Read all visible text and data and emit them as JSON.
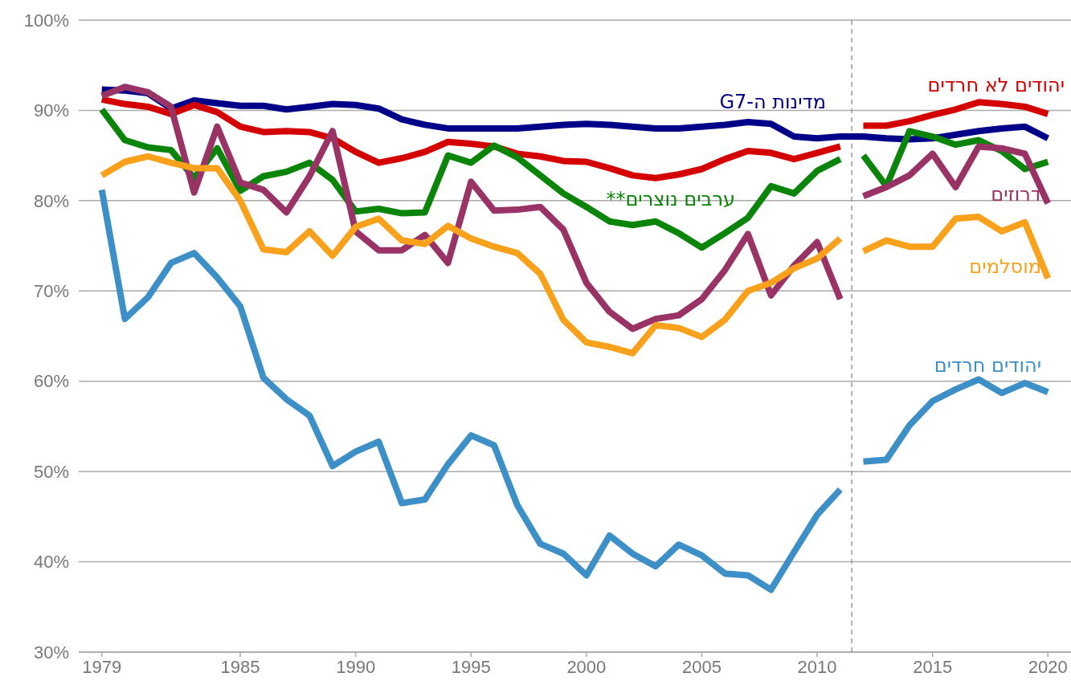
{
  "chart_data": {
    "type": "line",
    "x": [
      1979,
      1980,
      1981,
      1982,
      1983,
      1984,
      1985,
      1986,
      1987,
      1988,
      1989,
      1990,
      1991,
      1992,
      1993,
      1994,
      1995,
      1996,
      1997,
      1998,
      1999,
      2000,
      2001,
      2002,
      2003,
      2004,
      2005,
      2006,
      2007,
      2008,
      2009,
      2010,
      2011,
      2011.5,
      2012,
      2013,
      2014,
      2015,
      2016,
      2017,
      2018,
      2019,
      2020
    ],
    "xlim": [
      1978,
      2021
    ],
    "xticks": [
      1979,
      1985,
      1990,
      1995,
      2000,
      2005,
      2010,
      2015,
      2020
    ],
    "ylim": [
      30,
      100
    ],
    "yticks": [
      {
        "value": 30,
        "label": "30%"
      },
      {
        "value": 40,
        "label": "40%"
      },
      {
        "value": 50,
        "label": "50%"
      },
      {
        "value": 60,
        "label": "60%"
      },
      {
        "value": 70,
        "label": "70%"
      },
      {
        "value": 80,
        "label": "80%"
      },
      {
        "value": 90,
        "label": "90%"
      },
      {
        "value": 100,
        "label": "100%"
      }
    ],
    "grid": "y",
    "legend": false,
    "line_style": "solid",
    "marker": "none",
    "ref_lines": [
      {
        "axis": "x",
        "value": 2011.5,
        "line_style": "dashed",
        "color": "#999999"
      }
    ],
    "series": [
      {
        "name": "מדינות ה-G7",
        "color": "#000088",
        "x": [
          1979,
          1980,
          1981,
          1982,
          1983,
          1984,
          1985,
          1986,
          1987,
          1988,
          1989,
          1990,
          1991,
          1992,
          1993,
          1994,
          1995,
          1996,
          1997,
          1998,
          1999,
          2000,
          2001,
          2002,
          2003,
          2004,
          2005,
          2006,
          2007,
          2008,
          2009,
          2010,
          2011,
          2012,
          2013,
          2014,
          2015,
          2016,
          2017,
          2018,
          2019,
          2020
        ],
        "values": [
          92.3,
          92.2,
          91.9,
          90.2,
          91.1,
          90.8,
          90.5,
          90.5,
          90.1,
          90.4,
          90.7,
          90.6,
          90.2,
          89.0,
          88.4,
          88.0,
          88.0,
          88.0,
          88.0,
          88.2,
          88.4,
          88.5,
          88.4,
          88.2,
          88.0,
          88.0,
          88.2,
          88.4,
          88.7,
          88.5,
          87.1,
          86.9,
          87.1,
          87.1,
          86.9,
          86.8,
          86.9,
          87.3,
          87.7,
          88.0,
          88.2,
          86.9
        ]
      },
      {
        "name": "יהודים לא חרדים",
        "color": "#d40000",
        "values": [
          91.2,
          90.7,
          90.4,
          89.6,
          90.6,
          89.8,
          88.2,
          87.6,
          87.7,
          87.6,
          86.9,
          85.4,
          84.2,
          84.7,
          85.4,
          86.5,
          86.3,
          86.0,
          85.2,
          84.9,
          84.4,
          84.3,
          83.6,
          82.8,
          82.5,
          82.9,
          83.5,
          84.6,
          85.5,
          85.3,
          84.6,
          85.3,
          86.0,
          null,
          88.3,
          88.3,
          88.8,
          89.5,
          90.1,
          90.9,
          90.7,
          90.4,
          89.6
        ]
      },
      {
        "name": "ערבים נוצרים**",
        "color": "#0a850a",
        "values": [
          90.1,
          86.7,
          85.9,
          85.6,
          82.5,
          85.8,
          81.1,
          82.7,
          83.2,
          84.2,
          82.3,
          78.8,
          79.1,
          78.6,
          78.7,
          85.0,
          84.2,
          86.1,
          84.8,
          82.8,
          80.8,
          79.3,
          77.7,
          77.3,
          77.7,
          76.4,
          74.8,
          76.4,
          78.1,
          81.6,
          80.8,
          83.3,
          84.6,
          null,
          85.0,
          81.6,
          87.7,
          87.1,
          86.2,
          86.7,
          85.5,
          83.5,
          84.3
        ]
      },
      {
        "name": "דרוזים",
        "color": "#993366",
        "values": [
          91.6,
          92.6,
          92.0,
          90.4,
          80.9,
          88.2,
          82.0,
          81.2,
          78.7,
          82.7,
          87.7,
          76.6,
          74.5,
          74.5,
          76.2,
          73.1,
          82.1,
          78.9,
          79.0,
          79.3,
          76.8,
          70.9,
          67.7,
          65.8,
          66.9,
          67.3,
          69.1,
          72.3,
          76.3,
          69.5,
          72.8,
          75.4,
          69.1,
          null,
          80.5,
          81.5,
          82.8,
          85.2,
          81.5,
          86.0,
          85.8,
          85.2,
          79.7
        ]
      },
      {
        "name": "מוסלמים",
        "color": "#f9a11b",
        "values": [
          82.8,
          84.3,
          84.9,
          84.2,
          83.6,
          83.6,
          80.0,
          74.6,
          74.3,
          76.6,
          73.9,
          77.1,
          78.0,
          75.6,
          75.2,
          77.2,
          75.8,
          74.9,
          74.2,
          71.9,
          66.8,
          64.3,
          63.8,
          63.1,
          66.2,
          65.9,
          64.9,
          66.8,
          70.0,
          70.9,
          72.5,
          73.6,
          75.8,
          null,
          74.4,
          75.6,
          74.9,
          74.9,
          78.0,
          78.2,
          76.6,
          77.6,
          71.4
        ]
      },
      {
        "name": "יהודים חרדים",
        "color": "#3d8fc8",
        "values": [
          81.2,
          66.9,
          69.3,
          73.1,
          74.2,
          71.5,
          68.3,
          60.4,
          58.0,
          56.2,
          50.6,
          52.2,
          53.3,
          46.5,
          46.9,
          50.8,
          54.0,
          52.9,
          46.3,
          42.0,
          40.9,
          38.5,
          42.9,
          40.9,
          39.5,
          41.9,
          40.7,
          38.7,
          38.5,
          36.9,
          41.1,
          45.2,
          48.0,
          null,
          51.1,
          51.3,
          55.1,
          57.8,
          59.1,
          60.2,
          58.7,
          59.8,
          58.8
        ]
      }
    ]
  }
}
